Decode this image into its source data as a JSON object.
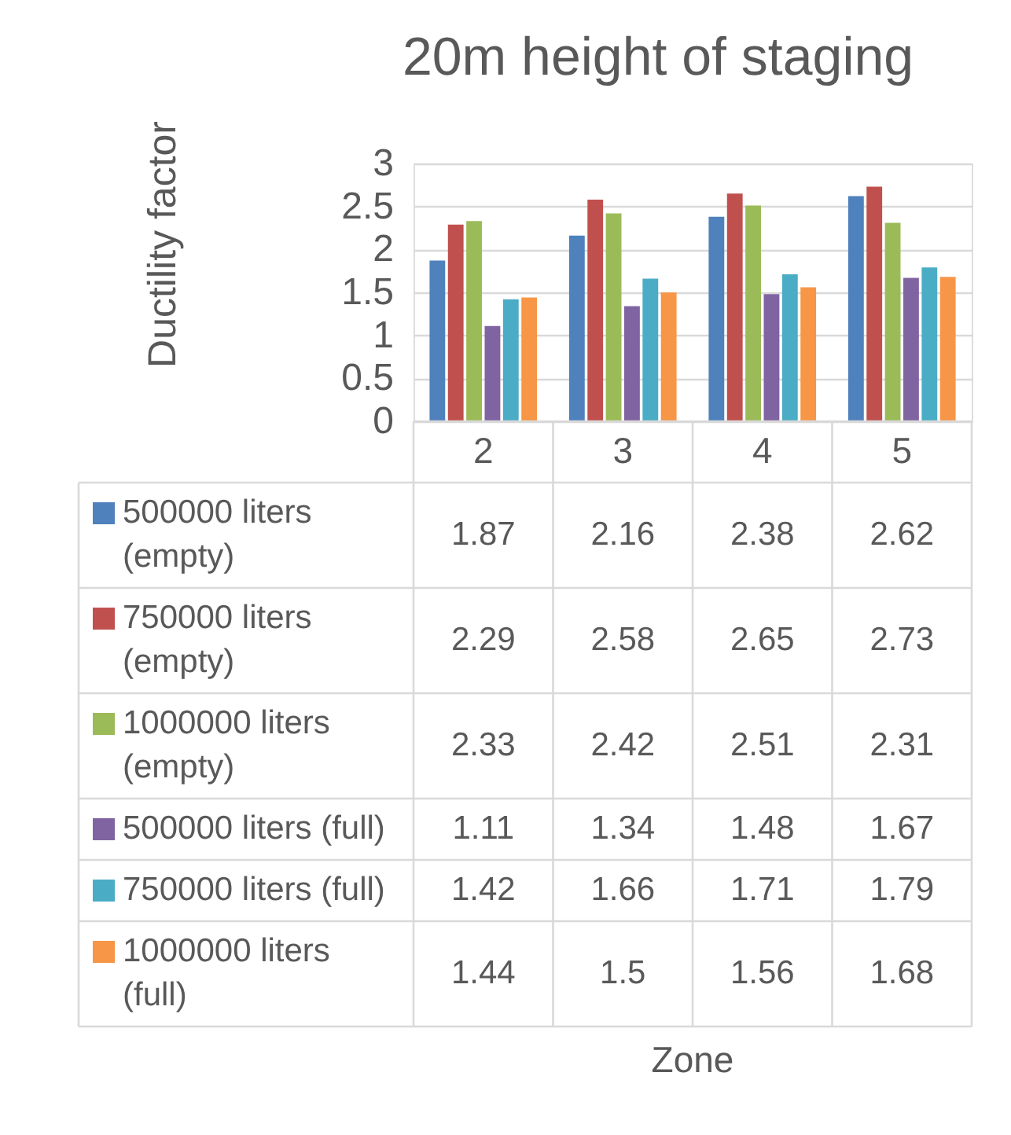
{
  "chart_data": {
    "type": "bar",
    "title": "20m height of staging",
    "ylabel": "Ductility factor",
    "categories": [
      "2",
      "3",
      "4",
      "5"
    ],
    "series": [
      {
        "name": "500000 liters (empty)",
        "color": "#4f81bd",
        "values": [
          1.87,
          2.16,
          2.38,
          2.62
        ]
      },
      {
        "name": "750000 liters (empty)",
        "color": "#c0504d",
        "values": [
          2.29,
          2.58,
          2.65,
          2.73
        ]
      },
      {
        "name": "1000000 liters (empty)",
        "color": "#9bbb59",
        "values": [
          2.33,
          2.42,
          2.51,
          2.31
        ]
      },
      {
        "name": "500000 liters (full)",
        "color": "#8064a2",
        "values": [
          1.11,
          1.34,
          1.48,
          1.67
        ]
      },
      {
        "name": "750000 liters (full)",
        "color": "#4bacc6",
        "values": [
          1.42,
          1.66,
          1.71,
          1.79
        ]
      },
      {
        "name": "1000000 liters (full)",
        "color": "#f79646",
        "values": [
          1.44,
          1.5,
          1.56,
          1.68
        ]
      }
    ],
    "ylim": [
      0,
      3
    ],
    "yticks": [
      0,
      0.5,
      1,
      1.5,
      2,
      2.5,
      3
    ],
    "grid": "y",
    "legend": "bottom",
    "data_labels": true,
    "annotations": [
      "Zone"
    ]
  }
}
